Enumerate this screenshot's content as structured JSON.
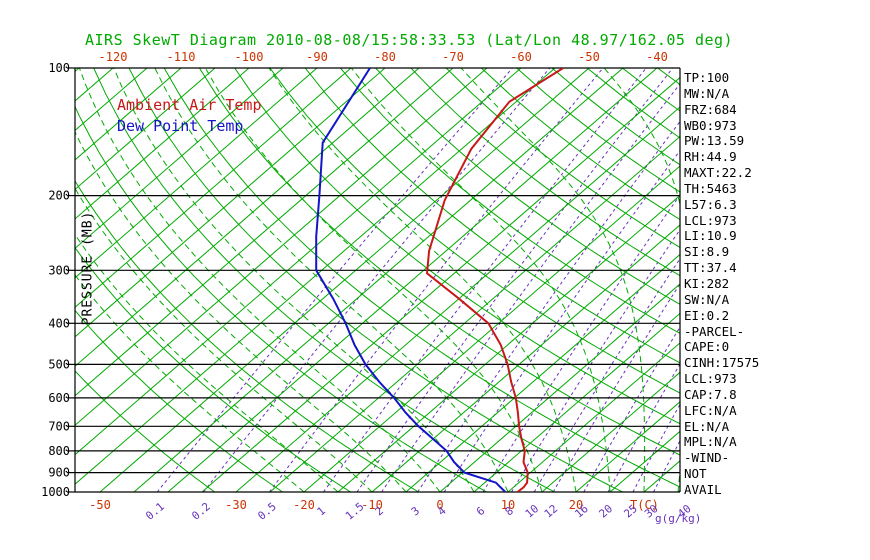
{
  "title": "AIRS SkewT Diagram 2010-08-08/15:58:33.53 (Lat/Lon 48.97/162.05 deg)",
  "legend": {
    "air_temp": "Ambient Air Temp",
    "dew_point": "Dew Point Temp"
  },
  "axes": {
    "pressure_label": "PRESSURE (MB)",
    "pressure_ticks": [
      100,
      200,
      300,
      400,
      500,
      600,
      700,
      800,
      900,
      1000
    ],
    "top_temp_ticks": [
      -120,
      -110,
      -100,
      -90,
      -80,
      -70,
      -60,
      -50,
      -40
    ],
    "bottom_temp_ticks": [
      -50,
      -30,
      -20,
      -10,
      0,
      10,
      20
    ],
    "temp_unit_label": "T(C)",
    "mixing_unit_label": "g(g/kg)",
    "mixing_ratio_ticks": [
      0.1,
      0.2,
      0.5,
      1,
      1.5,
      2,
      3,
      4,
      6,
      8,
      10,
      12,
      16,
      20,
      25,
      30,
      40
    ]
  },
  "stats": [
    "TP:100",
    "MW:N/A",
    "FRZ:684",
    "WB0:973",
    "PW:13.59",
    "RH:44.9",
    "MAXT:22.2",
    "TH:5463",
    "L57:6.3",
    "LCL:973",
    "LI:10.9",
    "SI:8.9",
    "TT:37.4",
    "KI:282",
    "SW:N/A",
    "EI:0.2",
    "-PARCEL-",
    "CAPE:0",
    "CINH:17575",
    "LCL:973",
    "CAP:7.8",
    "LFC:N/A",
    "EL:N/A",
    "MPL:N/A",
    "-WIND-",
    "NOT",
    "AVAIL"
  ],
  "colors": {
    "green": "#00AA00",
    "red": "#C81919",
    "red_label": "#CC3300",
    "blue": "#1414C8",
    "violet": "#6633BB",
    "black": "#000000"
  },
  "chart_data": {
    "type": "skewt",
    "title": "AIRS SkewT Diagram 2010-08-08/15:58:33.53 (Lat/Lon 48.97/162.05 deg)",
    "pressure_axis": {
      "unit": "MB",
      "range": [
        100,
        1000
      ],
      "log_scale": true
    },
    "temp_axis_unit": "C",
    "isotherm_step_c": 5,
    "dry_adiabat_theta_k": {
      "start": 240,
      "end": 450,
      "step": 10
    },
    "moist_adiabat_start_c": {
      "start": -20,
      "end": 40,
      "step": 5
    },
    "mixing_ratio_lines_g_kg": [
      0.1,
      0.2,
      0.5,
      1,
      1.5,
      2,
      3,
      4,
      6,
      8,
      10,
      12,
      16,
      20,
      25,
      30,
      40
    ],
    "series": [
      {
        "name": "Ambient Air Temp",
        "color": "#C81919",
        "points_p_mb_t_c": [
          [
            1000,
            11.4
          ],
          [
            975,
            11.5
          ],
          [
            950,
            11.2
          ],
          [
            900,
            9.6
          ],
          [
            850,
            7.2
          ],
          [
            800,
            5.5
          ],
          [
            750,
            3.0
          ],
          [
            700,
            0.5
          ],
          [
            650,
            -2.0
          ],
          [
            600,
            -4.8
          ],
          [
            550,
            -8.2
          ],
          [
            500,
            -11.7
          ],
          [
            450,
            -16.0
          ],
          [
            400,
            -21.5
          ],
          [
            350,
            -30.0
          ],
          [
            305,
            -39.0
          ],
          [
            270,
            -42.5
          ],
          [
            205,
            -48.8
          ],
          [
            155,
            -53.6
          ],
          [
            120,
            -56.0
          ],
          [
            100,
            -53.8
          ]
        ]
      },
      {
        "name": "Dew Point Temp",
        "color": "#1414C8",
        "points_p_mb_t_c": [
          [
            1000,
            9.6
          ],
          [
            950,
            6.6
          ],
          [
            900,
            0.3
          ],
          [
            850,
            -3.0
          ],
          [
            800,
            -6.0
          ],
          [
            750,
            -10.0
          ],
          [
            700,
            -14.3
          ],
          [
            650,
            -18.5
          ],
          [
            600,
            -22.7
          ],
          [
            550,
            -27.6
          ],
          [
            500,
            -32.6
          ],
          [
            450,
            -37.5
          ],
          [
            400,
            -42.5
          ],
          [
            350,
            -48.5
          ],
          [
            300,
            -55.8
          ],
          [
            250,
            -61.5
          ],
          [
            200,
            -68.0
          ],
          [
            150,
            -76.5
          ],
          [
            100,
            -82.2
          ]
        ]
      }
    ]
  }
}
